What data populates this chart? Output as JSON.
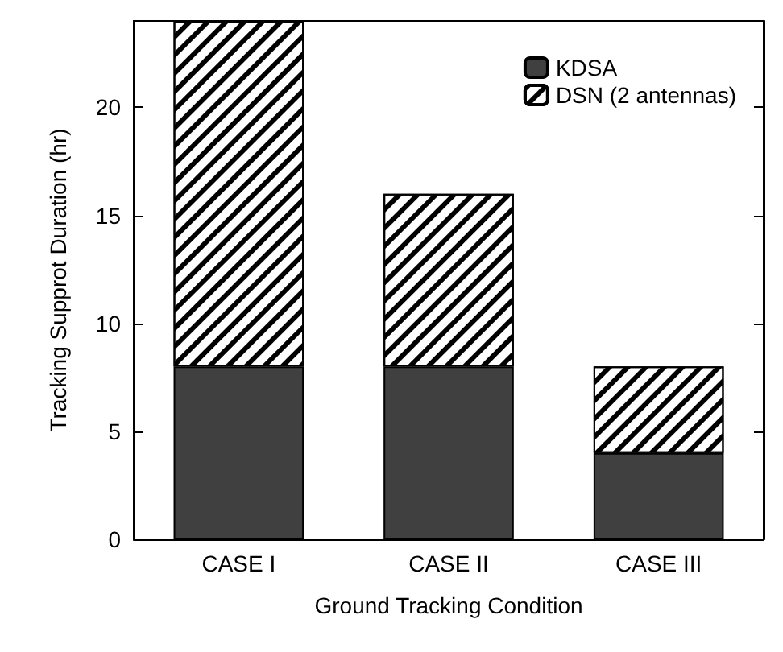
{
  "chart_data": {
    "type": "bar",
    "xlabel": "Ground Tracking Condition",
    "ylabel": "Tracking Supprot Duration (hr)",
    "categories": [
      "CASE I",
      "CASE II",
      "CASE III"
    ],
    "series": [
      {
        "name": "KDSA",
        "color": "#404040",
        "values": [
          8,
          8,
          4
        ]
      },
      {
        "name": "DSN (2 antennas)",
        "color": "#ffffff",
        "values": [
          16,
          8,
          4
        ]
      }
    ],
    "stacked": true,
    "ylim": [
      0,
      24
    ],
    "yticks": [
      0,
      5,
      10,
      15,
      20
    ],
    "grid": false,
    "legend": "top right"
  }
}
